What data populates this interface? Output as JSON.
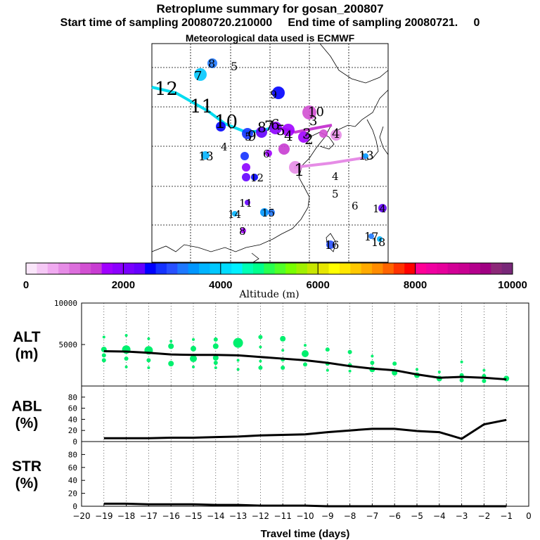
{
  "header": {
    "title": "Retroplume summary for gosan_200807",
    "sampling_line": "Start time of sampling 20080720.210000     End time of sampling 20080721.     0",
    "met_line": "Meteorological data used is ECMWF"
  },
  "colorbar": {
    "xlabel": "Altitude  (m)",
    "ticks": [
      "0",
      "2000",
      "4000",
      "6000",
      "8000",
      "10000"
    ],
    "colors": [
      "#fae6fa",
      "#f5c8f5",
      "#f0aaf0",
      "#e68ce6",
      "#dc6edc",
      "#d250d2",
      "#c83cd2",
      "#a000ff",
      "#8c00ff",
      "#7800ff",
      "#6400ff",
      "#0000ff",
      "#1432ff",
      "#2850ff",
      "#1e78ff",
      "#0096ff",
      "#00b4ff",
      "#00c8ff",
      "#00dcff",
      "#00f0ff",
      "#00ffb4",
      "#00ff8c",
      "#28ff50",
      "#50ff28",
      "#78ff00",
      "#a0f000",
      "#c8e600",
      "#e6e600",
      "#ffff00",
      "#ffe600",
      "#ffc800",
      "#ffaa00",
      "#ff8c00",
      "#ff6400",
      "#ff3200",
      "#ff0000",
      "#ff0096",
      "#f000a0",
      "#e6009b",
      "#d20096",
      "#c80091",
      "#b4008c",
      "#a00082",
      "#8c2878",
      "#782878"
    ]
  },
  "map": {
    "trajectory_labels": [
      {
        "t": "12",
        "c": "#000000"
      },
      {
        "t": "11",
        "c": "#000000"
      },
      {
        "t": "10",
        "c": "#000000"
      },
      {
        "t": "9",
        "c": "#000000"
      },
      {
        "t": "8",
        "c": "#000000"
      },
      {
        "t": "7",
        "c": "#000000"
      },
      {
        "t": "6",
        "c": "#000000"
      },
      {
        "t": "5",
        "c": "#000000"
      },
      {
        "t": "4",
        "c": "#000000"
      },
      {
        "t": "3",
        "c": "#000000"
      },
      {
        "t": "2",
        "c": "#000000"
      },
      {
        "t": "1",
        "c": "#000000"
      },
      {
        "t": "13",
        "c": "#000000"
      },
      {
        "t": "4",
        "c": "#000000"
      },
      {
        "t": "5",
        "c": "#000000"
      },
      {
        "t": "3",
        "c": "#000000"
      },
      {
        "t": "4",
        "c": "#000000"
      },
      {
        "t": "10",
        "c": "#000000"
      },
      {
        "t": "7",
        "c": "#000000"
      },
      {
        "t": "8",
        "c": "#000000"
      },
      {
        "t": "5",
        "c": "#000000"
      },
      {
        "t": "9",
        "c": "#000000"
      },
      {
        "t": "13",
        "c": "#000000"
      },
      {
        "t": "4",
        "c": "#000000"
      },
      {
        "t": "5",
        "c": "#000000"
      },
      {
        "t": "6",
        "c": "#000000"
      },
      {
        "t": "12",
        "c": "#000000"
      },
      {
        "t": "11",
        "c": "#000000"
      },
      {
        "t": "14",
        "c": "#000000"
      },
      {
        "t": "15",
        "c": "#000000"
      },
      {
        "t": "8",
        "c": "#000000"
      },
      {
        "t": "6",
        "c": "#000000"
      },
      {
        "t": "14",
        "c": "#000000"
      },
      {
        "t": "16",
        "c": "#000000"
      },
      {
        "t": "17",
        "c": "#000000"
      },
      {
        "t": "18",
        "c": "#000000"
      }
    ]
  },
  "panels": {
    "alt_label": "ALT\n(m)",
    "abl_label": "ABL\n(%)",
    "str_label": "STR\n(%)",
    "xlabel": "Travel time (days)"
  },
  "chart_data": [
    {
      "type": "scatter",
      "title": "ALT (m)",
      "ylabel": "ALT (m)",
      "ylim": [
        0,
        10000
      ],
      "yticks": [
        5000,
        10000
      ],
      "xlim": [
        -20,
        0
      ],
      "x": [
        -19,
        -18,
        -17,
        -16,
        -15,
        -14,
        -13,
        -12,
        -11,
        -10,
        -9,
        -8,
        -7,
        -6,
        -5,
        -4,
        -3,
        -2,
        -1
      ],
      "median_line": [
        4200,
        4150,
        4000,
        3800,
        3750,
        3750,
        3700,
        3500,
        3300,
        3100,
        2800,
        2400,
        2100,
        1900,
        1400,
        1000,
        1100,
        1000,
        800
      ],
      "points": [
        {
          "x": -19,
          "y": 5900,
          "s": 2
        },
        {
          "x": -19,
          "y": 4400,
          "s": 4
        },
        {
          "x": -19,
          "y": 3700,
          "s": 3
        },
        {
          "x": -19,
          "y": 3100,
          "s": 3
        },
        {
          "x": -18,
          "y": 6100,
          "s": 2
        },
        {
          "x": -18,
          "y": 4400,
          "s": 6
        },
        {
          "x": -18,
          "y": 3300,
          "s": 3
        },
        {
          "x": -18,
          "y": 2300,
          "s": 2
        },
        {
          "x": -17,
          "y": 5700,
          "s": 2
        },
        {
          "x": -17,
          "y": 4300,
          "s": 6
        },
        {
          "x": -17,
          "y": 3100,
          "s": 3
        },
        {
          "x": -17,
          "y": 2200,
          "s": 2
        },
        {
          "x": -16,
          "y": 5400,
          "s": 2
        },
        {
          "x": -16,
          "y": 4800,
          "s": 4
        },
        {
          "x": -16,
          "y": 2700,
          "s": 4
        },
        {
          "x": -15,
          "y": 5600,
          "s": 2
        },
        {
          "x": -15,
          "y": 4500,
          "s": 4
        },
        {
          "x": -15,
          "y": 3300,
          "s": 5
        },
        {
          "x": -15,
          "y": 2300,
          "s": 2
        },
        {
          "x": -14,
          "y": 5600,
          "s": 3
        },
        {
          "x": -14,
          "y": 4800,
          "s": 4
        },
        {
          "x": -14,
          "y": 3400,
          "s": 4
        },
        {
          "x": -14,
          "y": 2800,
          "s": 3
        },
        {
          "x": -14,
          "y": 2200,
          "s": 2
        },
        {
          "x": -13,
          "y": 5200,
          "s": 7
        },
        {
          "x": -13,
          "y": 3100,
          "s": 2
        },
        {
          "x": -13,
          "y": 2000,
          "s": 2
        },
        {
          "x": -12,
          "y": 5900,
          "s": 3
        },
        {
          "x": -12,
          "y": 4700,
          "s": 2
        },
        {
          "x": -12,
          "y": 3000,
          "s": 2
        },
        {
          "x": -12,
          "y": 2200,
          "s": 3
        },
        {
          "x": -11,
          "y": 5700,
          "s": 4
        },
        {
          "x": -11,
          "y": 4300,
          "s": 2
        },
        {
          "x": -11,
          "y": 3200,
          "s": 3
        },
        {
          "x": -11,
          "y": 2200,
          "s": 3
        },
        {
          "x": -10,
          "y": 4900,
          "s": 2
        },
        {
          "x": -10,
          "y": 3900,
          "s": 5
        },
        {
          "x": -10,
          "y": 2600,
          "s": 3
        },
        {
          "x": -9,
          "y": 4400,
          "s": 3
        },
        {
          "x": -9,
          "y": 2700,
          "s": 3
        },
        {
          "x": -9,
          "y": 1900,
          "s": 2
        },
        {
          "x": -8,
          "y": 4100,
          "s": 3
        },
        {
          "x": -8,
          "y": 2500,
          "s": 3
        },
        {
          "x": -8,
          "y": 1800,
          "s": 2
        },
        {
          "x": -7,
          "y": 3600,
          "s": 2
        },
        {
          "x": -7,
          "y": 2800,
          "s": 3
        },
        {
          "x": -7,
          "y": 2000,
          "s": 4
        },
        {
          "x": -6,
          "y": 2700,
          "s": 3
        },
        {
          "x": -6,
          "y": 1600,
          "s": 4
        },
        {
          "x": -5,
          "y": 2000,
          "s": 2
        },
        {
          "x": -5,
          "y": 1300,
          "s": 4
        },
        {
          "x": -4,
          "y": 1700,
          "s": 2
        },
        {
          "x": -4,
          "y": 900,
          "s": 4
        },
        {
          "x": -3,
          "y": 2900,
          "s": 2
        },
        {
          "x": -3,
          "y": 1300,
          "s": 3
        },
        {
          "x": -3,
          "y": 700,
          "s": 3
        },
        {
          "x": -2,
          "y": 1900,
          "s": 2
        },
        {
          "x": -2,
          "y": 1200,
          "s": 3
        },
        {
          "x": -2,
          "y": 600,
          "s": 3
        },
        {
          "x": -1,
          "y": 900,
          "s": 4
        }
      ]
    },
    {
      "type": "line",
      "title": "ABL (%)",
      "ylabel": "ABL (%)",
      "ylim": [
        0,
        100
      ],
      "yticks": [
        0,
        20,
        40,
        60,
        80
      ],
      "xlim": [
        -20,
        0
      ],
      "x": [
        -19,
        -18,
        -17,
        -16,
        -15,
        -14,
        -13,
        -12,
        -11,
        -10,
        -9,
        -8,
        -7,
        -6,
        -5,
        -4,
        -3,
        -2,
        -1
      ],
      "values": [
        6,
        6,
        6,
        7,
        7,
        8,
        9,
        11,
        12,
        13,
        17,
        20,
        23,
        23,
        19,
        17,
        5,
        31,
        39
      ]
    },
    {
      "type": "line",
      "title": "STR (%)",
      "ylabel": "STR (%)",
      "ylim": [
        0,
        100
      ],
      "yticks": [
        0,
        20,
        40,
        60,
        80
      ],
      "xlim": [
        -20,
        0
      ],
      "x": [
        -19,
        -18,
        -17,
        -16,
        -15,
        -14,
        -13,
        -12,
        -11,
        -10,
        -9,
        -8,
        -7,
        -6,
        -5,
        -4,
        -3,
        -2,
        -1
      ],
      "values": [
        4,
        4,
        3,
        3,
        3,
        2,
        2,
        1,
        1,
        1,
        0,
        0,
        0,
        0,
        0,
        0,
        0,
        0,
        0
      ],
      "xticks": [
        -20,
        -19,
        -18,
        -17,
        -16,
        -15,
        -14,
        -13,
        -12,
        -11,
        -10,
        -9,
        -8,
        -7,
        -6,
        -5,
        -4,
        -3,
        -2,
        -1,
        0
      ],
      "xtick_labels": [
        "−20",
        "−19",
        "−18",
        "−17",
        "−16",
        "−15",
        "−14",
        "−13",
        "−12",
        "−11",
        "−10",
        "−9",
        "−8",
        "−7",
        "−6",
        "−5",
        "−4",
        "−3",
        "−2",
        "−1",
        "0"
      ],
      "xlabel": "Travel time (days)"
    }
  ]
}
